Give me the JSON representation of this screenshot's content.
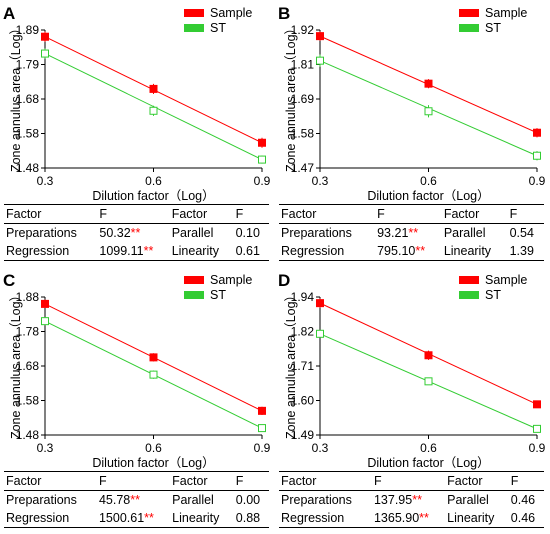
{
  "panels": [
    {
      "letter": "A",
      "table": {
        "headers": [
          "Factor",
          "F",
          "Factor",
          "F"
        ],
        "rows": [
          {
            "factor1": "Preparations",
            "f1": "50.32",
            "stars": "**",
            "factor2": "Parallel",
            "f2": "0.10"
          },
          {
            "factor1": "Regression",
            "f1": "1099.11",
            "stars": "**",
            "factor2": "Linearity",
            "f2": "0.61"
          }
        ]
      }
    },
    {
      "letter": "B",
      "table": {
        "headers": [
          "Factor",
          "F",
          "Factor",
          "F"
        ],
        "rows": [
          {
            "factor1": "Preparations",
            "f1": "93.21",
            "stars": "**",
            "factor2": "Parallel",
            "f2": "0.54"
          },
          {
            "factor1": "Regression",
            "f1": "795.10",
            "stars": "**",
            "factor2": "Linearity",
            "f2": "1.39"
          }
        ]
      }
    },
    {
      "letter": "C",
      "table": {
        "headers": [
          "Factor",
          "F",
          "Factor",
          "F"
        ],
        "rows": [
          {
            "factor1": "Preparations",
            "f1": "45.78",
            "stars": "**",
            "factor2": "Parallel",
            "f2": "0.00"
          },
          {
            "factor1": "Regression",
            "f1": "1500.61",
            "stars": "**",
            "factor2": "Linearity",
            "f2": "0.88"
          }
        ]
      }
    },
    {
      "letter": "D",
      "table": {
        "headers": [
          "Factor",
          "F",
          "Factor",
          "F"
        ],
        "rows": [
          {
            "factor1": "Preparations",
            "f1": "137.95",
            "stars": "**",
            "factor2": "Parallel",
            "f2": "0.46"
          },
          {
            "factor1": "Regression",
            "f1": "1365.90",
            "stars": "**",
            "factor2": "Linearity",
            "f2": "0.46"
          }
        ]
      }
    }
  ],
  "chart_data": [
    {
      "type": "line",
      "xlabel": "Dilution factor（Log）",
      "ylabel": "Zone annulus area（Log）",
      "x": [
        0.3,
        0.6,
        0.9
      ],
      "xticks": [
        "0.3",
        "0.6",
        "0.9"
      ],
      "ylim": [
        1.48,
        1.89
      ],
      "yticks": [
        "1.48",
        "1.58",
        "1.68",
        "1.79",
        "1.89"
      ],
      "legend_position": "top-right",
      "series": [
        {
          "name": "Sample",
          "color": "#ff0000",
          "marker": "filled-square",
          "values": [
            1.87,
            1.715,
            1.555
          ],
          "errors": [
            0.015,
            0.015,
            0.015
          ]
        },
        {
          "name": "ST",
          "color": "#33cc33",
          "marker": "open-square",
          "values": [
            1.82,
            1.65,
            1.505
          ],
          "errors": [
            0.015,
            0.015,
            0.012
          ]
        }
      ]
    },
    {
      "type": "line",
      "xlabel": "Dilution factor（Log）",
      "ylabel": "Zone annulus area（Log）",
      "x": [
        0.3,
        0.6,
        0.9
      ],
      "xticks": [
        "0.3",
        "0.6",
        "0.9"
      ],
      "ylim": [
        1.47,
        1.92
      ],
      "yticks": [
        "1.47",
        "1.58",
        "1.69",
        "1.81",
        "1.92"
      ],
      "legend_position": "top-right",
      "series": [
        {
          "name": "Sample",
          "color": "#ff0000",
          "marker": "filled-square",
          "values": [
            1.9,
            1.745,
            1.585
          ],
          "errors": [
            0.015,
            0.015,
            0.015
          ]
        },
        {
          "name": "ST",
          "color": "#33cc33",
          "marker": "open-square",
          "values": [
            1.82,
            1.655,
            1.51
          ],
          "errors": [
            0.02,
            0.02,
            0.015
          ]
        }
      ]
    },
    {
      "type": "line",
      "xlabel": "Dilution factor（Log）",
      "ylabel": "Zone annulus area（Log）",
      "x": [
        0.3,
        0.6,
        0.9
      ],
      "xticks": [
        "0.3",
        "0.6",
        "0.9"
      ],
      "ylim": [
        1.48,
        1.88
      ],
      "yticks": [
        "1.48",
        "1.58",
        "1.68",
        "1.78",
        "1.88"
      ],
      "legend_position": "top-right",
      "series": [
        {
          "name": "Sample",
          "color": "#ff0000",
          "marker": "filled-square",
          "values": [
            1.86,
            1.705,
            1.55
          ],
          "errors": [
            0.012,
            0.012,
            0.012
          ]
        },
        {
          "name": "ST",
          "color": "#33cc33",
          "marker": "open-square",
          "values": [
            1.81,
            1.655,
            1.5
          ],
          "errors": [
            0.012,
            0.012,
            0.01
          ]
        }
      ]
    },
    {
      "type": "line",
      "xlabel": "Dilution factor（Log）",
      "ylabel": "Zone annulus area（Log）",
      "x": [
        0.3,
        0.6,
        0.9
      ],
      "xticks": [
        "0.3",
        "0.6",
        "0.9"
      ],
      "ylim": [
        1.49,
        1.94
      ],
      "yticks": [
        "1.49",
        "1.60",
        "1.71",
        "1.82",
        "1.94"
      ],
      "legend_position": "top-right",
      "series": [
        {
          "name": "Sample",
          "color": "#ff0000",
          "marker": "filled-square",
          "values": [
            1.92,
            1.75,
            1.59
          ],
          "errors": [
            0.015,
            0.015,
            0.012
          ]
        },
        {
          "name": "ST",
          "color": "#33cc33",
          "marker": "open-square",
          "values": [
            1.82,
            1.665,
            1.51
          ],
          "errors": [
            0.012,
            0.012,
            0.012
          ]
        }
      ]
    }
  ]
}
